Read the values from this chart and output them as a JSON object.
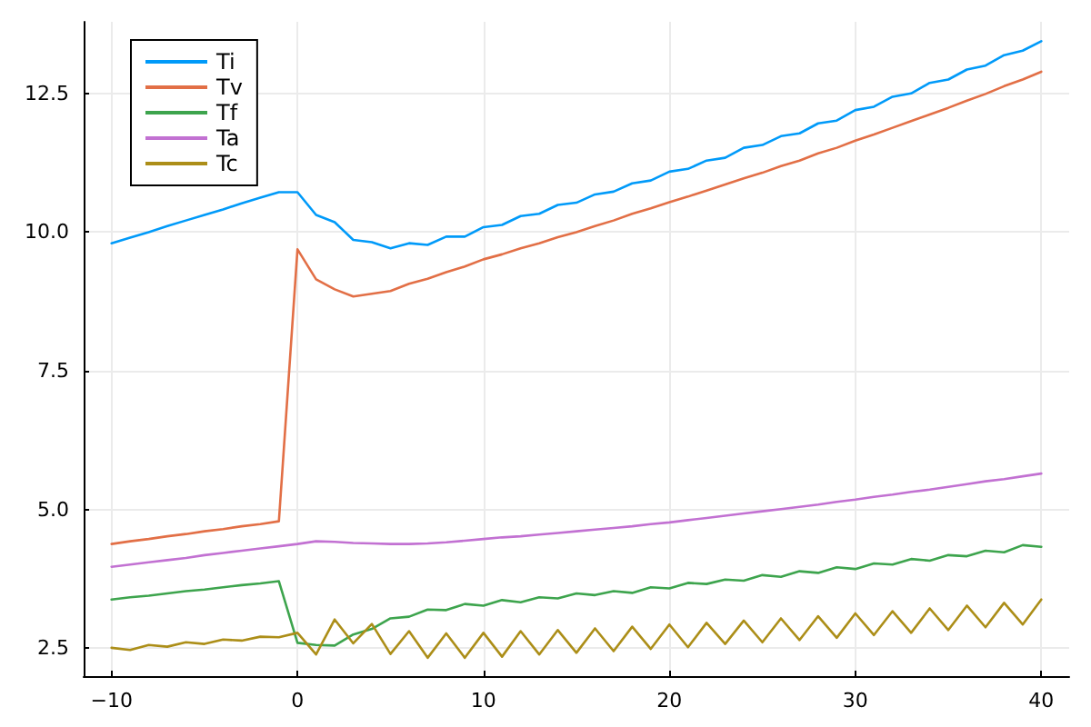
{
  "chart_data": {
    "type": "line",
    "legend": "top left",
    "grid": true,
    "marker": "none",
    "line_style": "solid",
    "x": [
      -10,
      -9,
      -8,
      -7,
      -6,
      -5,
      -4,
      -3,
      -2,
      -1,
      0,
      1,
      2,
      3,
      4,
      5,
      6,
      7,
      8,
      9,
      10,
      11,
      12,
      13,
      14,
      15,
      16,
      17,
      18,
      19,
      20,
      21,
      22,
      23,
      24,
      25,
      26,
      27,
      28,
      29,
      30,
      31,
      32,
      33,
      34,
      35,
      36,
      37,
      38,
      39,
      40
    ],
    "xlim": [
      -11.5,
      41.5
    ],
    "xticks": [
      {
        "value": -10,
        "label": "−10"
      },
      0,
      10,
      20,
      30,
      40
    ],
    "ylim": [
      2.0,
      13.79
    ],
    "yticks": [
      2.5,
      {
        "value": 5,
        "label": "5.0"
      },
      7.5,
      {
        "value": 10,
        "label": "10.0"
      },
      12.5
    ],
    "series": [
      {
        "name": "Ti",
        "color": "#009af9",
        "values": [
          9.8,
          9.9,
          10.0,
          10.11,
          10.21,
          10.31,
          10.41,
          10.52,
          10.62,
          10.72,
          10.72,
          10.31,
          10.18,
          9.86,
          9.82,
          9.71,
          9.8,
          9.77,
          9.92,
          9.92,
          10.09,
          10.13,
          10.29,
          10.33,
          10.49,
          10.53,
          10.68,
          10.73,
          10.88,
          10.93,
          11.09,
          11.14,
          11.29,
          11.34,
          11.52,
          11.57,
          11.73,
          11.78,
          11.96,
          12.01,
          12.2,
          12.26,
          12.44,
          12.5,
          12.69,
          12.75,
          12.93,
          13.0,
          13.19,
          13.27,
          13.44
        ]
      },
      {
        "name": "Tv",
        "color": "#e26f46",
        "values": [
          4.38,
          4.43,
          4.47,
          4.52,
          4.56,
          4.61,
          4.65,
          4.7,
          4.74,
          4.79,
          9.69,
          9.15,
          8.97,
          8.84,
          8.89,
          8.94,
          9.07,
          9.16,
          9.28,
          9.38,
          9.51,
          9.6,
          9.71,
          9.8,
          9.91,
          10.0,
          10.11,
          10.21,
          10.33,
          10.43,
          10.54,
          10.64,
          10.75,
          10.86,
          10.97,
          11.07,
          11.19,
          11.29,
          11.42,
          11.52,
          11.65,
          11.76,
          11.88,
          12.0,
          12.12,
          12.24,
          12.37,
          12.49,
          12.63,
          12.75,
          12.89
        ]
      },
      {
        "name": "Tf",
        "color": "#3da44d",
        "values": [
          3.38,
          3.42,
          3.45,
          3.49,
          3.53,
          3.56,
          3.6,
          3.64,
          3.67,
          3.71,
          2.6,
          2.56,
          2.55,
          2.75,
          2.85,
          3.04,
          3.07,
          3.2,
          3.19,
          3.3,
          3.27,
          3.37,
          3.33,
          3.42,
          3.4,
          3.49,
          3.46,
          3.53,
          3.5,
          3.6,
          3.58,
          3.68,
          3.66,
          3.74,
          3.72,
          3.82,
          3.79,
          3.89,
          3.86,
          3.96,
          3.93,
          4.03,
          4.01,
          4.11,
          4.08,
          4.18,
          4.16,
          4.26,
          4.23,
          4.36,
          4.33
        ]
      },
      {
        "name": "Ta",
        "color": "#c271d2",
        "values": [
          3.97,
          4.01,
          4.05,
          4.09,
          4.13,
          4.18,
          4.22,
          4.26,
          4.3,
          4.34,
          4.38,
          4.43,
          4.42,
          4.4,
          4.39,
          4.38,
          4.38,
          4.39,
          4.41,
          4.44,
          4.47,
          4.5,
          4.52,
          4.55,
          4.58,
          4.61,
          4.64,
          4.67,
          4.7,
          4.74,
          4.77,
          4.81,
          4.85,
          4.89,
          4.93,
          4.97,
          5.01,
          5.05,
          5.09,
          5.14,
          5.18,
          5.23,
          5.27,
          5.32,
          5.36,
          5.41,
          5.46,
          5.51,
          5.55,
          5.6,
          5.65
        ]
      },
      {
        "name": "Tc",
        "color": "#ac8e18",
        "values": [
          2.51,
          2.47,
          2.56,
          2.53,
          2.61,
          2.58,
          2.66,
          2.64,
          2.71,
          2.7,
          2.78,
          2.39,
          3.02,
          2.59,
          2.94,
          2.4,
          2.81,
          2.33,
          2.77,
          2.33,
          2.78,
          2.35,
          2.81,
          2.39,
          2.83,
          2.42,
          2.86,
          2.45,
          2.89,
          2.49,
          2.93,
          2.52,
          2.96,
          2.58,
          3.0,
          2.61,
          3.04,
          2.65,
          3.08,
          2.69,
          3.13,
          2.74,
          3.17,
          2.78,
          3.22,
          2.83,
          3.27,
          2.88,
          3.32,
          2.93,
          3.38
        ]
      }
    ]
  }
}
